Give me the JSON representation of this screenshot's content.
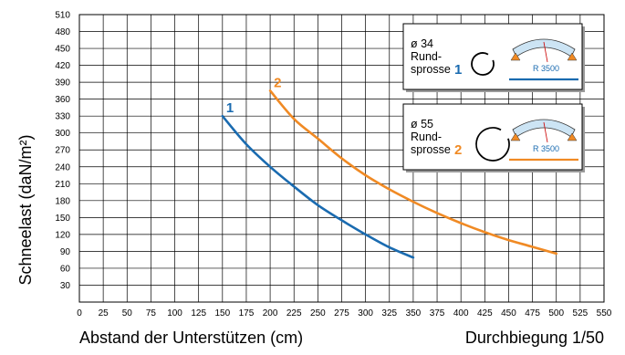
{
  "chart_data": {
    "type": "line",
    "title": "",
    "xlabel": "Abstand der Unterstützen  (cm)",
    "ylabel": "Schneelast  (daN/m²)",
    "subtitle_right": "Durchbiegung 1/50",
    "xlim": [
      0,
      550
    ],
    "ylim": [
      0,
      510
    ],
    "xticks": [
      0,
      25,
      50,
      75,
      100,
      125,
      150,
      175,
      200,
      225,
      250,
      275,
      300,
      325,
      350,
      375,
      400,
      425,
      450,
      475,
      500,
      525,
      550
    ],
    "yticks": [
      30,
      60,
      90,
      120,
      150,
      180,
      210,
      240,
      270,
      300,
      330,
      360,
      390,
      420,
      450,
      480,
      510
    ],
    "grid": true,
    "series": [
      {
        "name": "1",
        "color": "#1a6bb0",
        "points": [
          [
            150,
            330
          ],
          [
            175,
            280
          ],
          [
            200,
            240
          ],
          [
            225,
            205
          ],
          [
            250,
            172
          ],
          [
            275,
            145
          ],
          [
            300,
            120
          ],
          [
            325,
            97
          ],
          [
            350,
            79
          ]
        ]
      },
      {
        "name": "2",
        "color": "#f08a24",
        "points": [
          [
            200,
            375
          ],
          [
            225,
            325
          ],
          [
            250,
            290
          ],
          [
            275,
            255
          ],
          [
            300,
            225
          ],
          [
            325,
            200
          ],
          [
            350,
            178
          ],
          [
            375,
            158
          ],
          [
            400,
            140
          ],
          [
            425,
            124
          ],
          [
            450,
            110
          ],
          [
            475,
            98
          ],
          [
            500,
            86
          ]
        ]
      }
    ],
    "insets": [
      {
        "diameter": "ø 34",
        "line1": "Rund-",
        "line2": "sprosse",
        "number": "1",
        "radius_label": "R 3500",
        "color": "#1a6bb0"
      },
      {
        "diameter": "ø 55",
        "line1": "Rund-",
        "line2": "sprosse",
        "number": "2",
        "radius_label": "R 3500",
        "color": "#f08a24"
      }
    ]
  }
}
